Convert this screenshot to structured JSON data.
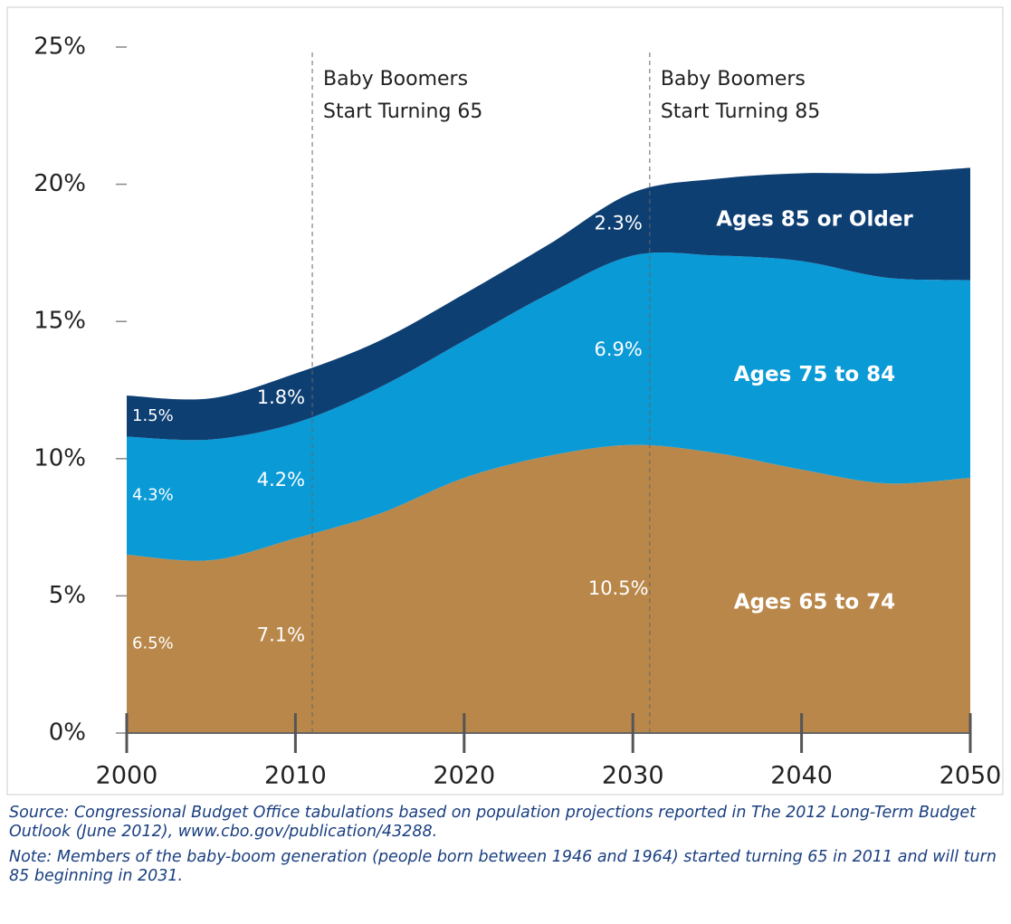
{
  "chart_data": {
    "type": "stacked_area",
    "x": [
      2000,
      2005,
      2010,
      2015,
      2020,
      2025,
      2030,
      2035,
      2040,
      2045,
      2050
    ],
    "series": [
      {
        "name": "Ages 65 to 74",
        "color": "#b9874a",
        "values": [
          6.5,
          6.3,
          7.1,
          8.0,
          9.3,
          10.1,
          10.5,
          10.2,
          9.6,
          9.1,
          9.3
        ],
        "value_labels": [
          "6.5%",
          null,
          "7.1%",
          null,
          null,
          null,
          "10.5%",
          null,
          null,
          null,
          null
        ]
      },
      {
        "name": "Ages 75 to 84",
        "color": "#0a9ad6",
        "values": [
          4.3,
          4.4,
          4.2,
          4.6,
          5.0,
          5.9,
          6.9,
          7.2,
          7.6,
          7.5,
          7.2
        ],
        "value_labels": [
          "4.3%",
          null,
          "4.2%",
          null,
          null,
          null,
          "6.9%",
          null,
          null,
          null,
          null
        ]
      },
      {
        "name": "Ages 85 or Older",
        "color": "#0e3f73",
        "values": [
          1.5,
          1.5,
          1.8,
          1.7,
          1.7,
          1.8,
          2.3,
          2.8,
          3.2,
          3.8,
          4.1
        ],
        "value_labels": [
          "1.5%",
          null,
          "1.8%",
          null,
          null,
          null,
          "2.3%",
          null,
          null,
          null,
          null
        ]
      }
    ],
    "xlim": [
      2000,
      2050
    ],
    "xticks": [
      2000,
      2010,
      2020,
      2030,
      2040,
      2050
    ],
    "ylim": [
      0,
      25
    ],
    "yticks": [
      {
        "value": 0,
        "label": "0%"
      },
      {
        "value": 5,
        "label": "5%"
      },
      {
        "value": 10,
        "label": "10%"
      },
      {
        "value": 15,
        "label": "15%"
      },
      {
        "value": 20,
        "label": "20%"
      },
      {
        "value": 25,
        "label": "25%"
      }
    ],
    "annotations": [
      {
        "x": 2011,
        "text": [
          "Baby Boomers",
          "Start Turning 65"
        ]
      },
      {
        "x": 2031,
        "text": [
          "Baby Boomers",
          "Start Turning 85"
        ]
      }
    ],
    "source": "Source: Congressional Budget Office tabulations based on population projections reported in The 2012 Long-Term Budget Outlook (June 2012), www.cbo.gov/publication/43288.",
    "note": "Note: Members of the baby-boom generation (people born between 1946 and 1964) started turning 65 in 2011 and will turn 85 beginning in 2031."
  }
}
